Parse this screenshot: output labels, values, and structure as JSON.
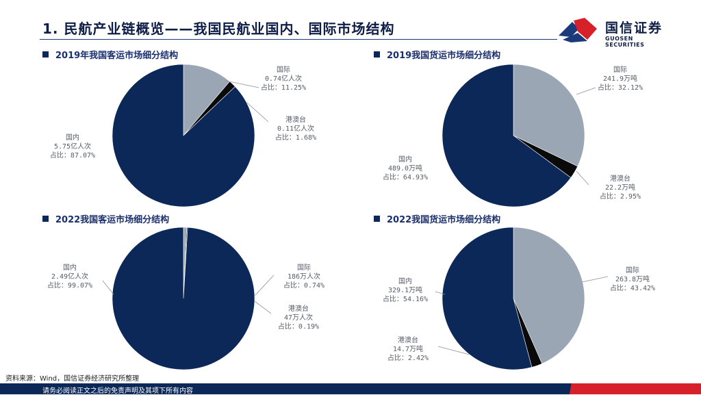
{
  "page": {
    "title": "1. 民航产业链概览——我国民航业国内、国际市场结构",
    "logo_cn": "国信证券",
    "logo_en": "GUOSEN SECURITIES",
    "source": "资料来源：Wind，国信证券经济研究所整理",
    "footer": "请务必阅读正文之后的免责声明及其项下所有内容"
  },
  "colors": {
    "domestic": "#0c2858",
    "international": "#9aa6b4",
    "hk_macau_tw": "#0a0a0a",
    "accent": "#d6202a"
  },
  "chart_data": [
    {
      "type": "pie",
      "title": "2019年我国客运市场细分结构",
      "slices": [
        {
          "lines": [
            "国际",
            "0.74亿人次",
            "占比：11.25%"
          ],
          "value": 11.25,
          "color": "#9aa6b4"
        },
        {
          "lines": [
            "港澳台",
            "0.11亿人次",
            "占比：1.68%"
          ],
          "value": 1.68,
          "color": "#0a0a0a"
        },
        {
          "lines": [
            "国内",
            "5.75亿人次",
            "占比：87.07%"
          ],
          "value": 87.07,
          "color": "#0c2858"
        }
      ]
    },
    {
      "type": "pie",
      "title": "2019我国货运市场细分结构",
      "slices": [
        {
          "lines": [
            "国际",
            "241.9万吨",
            "占比：32.12%"
          ],
          "value": 32.12,
          "color": "#9aa6b4"
        },
        {
          "lines": [
            "港澳台",
            "22.2万吨",
            "占比：2.95%"
          ],
          "value": 2.95,
          "color": "#0a0a0a"
        },
        {
          "lines": [
            "国内",
            "489.0万吨",
            "占比：64.93%"
          ],
          "value": 64.93,
          "color": "#0c2858"
        }
      ]
    },
    {
      "type": "pie",
      "title": "2022我国客运市场细分结构",
      "slices": [
        {
          "lines": [
            "国际",
            "186万人次",
            "占比：0.74%"
          ],
          "value": 0.74,
          "color": "#9aa6b4"
        },
        {
          "lines": [
            "港澳台",
            "47万人次",
            "占比：0.19%"
          ],
          "value": 0.19,
          "color": "#0a0a0a"
        },
        {
          "lines": [
            "国内",
            "2.49亿人次",
            "占比：99.07%"
          ],
          "value": 99.07,
          "color": "#0c2858"
        }
      ]
    },
    {
      "type": "pie",
      "title": "2022我国货运市场细分结构",
      "slices": [
        {
          "lines": [
            "国际",
            "263.8万吨",
            "占比：43.42%"
          ],
          "value": 43.42,
          "color": "#9aa6b4"
        },
        {
          "lines": [
            "港澳台",
            "14.7万吨",
            "占比：2.42%"
          ],
          "value": 2.42,
          "color": "#0a0a0a"
        },
        {
          "lines": [
            "国内",
            "329.1万吨",
            "占比：54.16%"
          ],
          "value": 54.16,
          "color": "#0c2858"
        }
      ]
    }
  ]
}
